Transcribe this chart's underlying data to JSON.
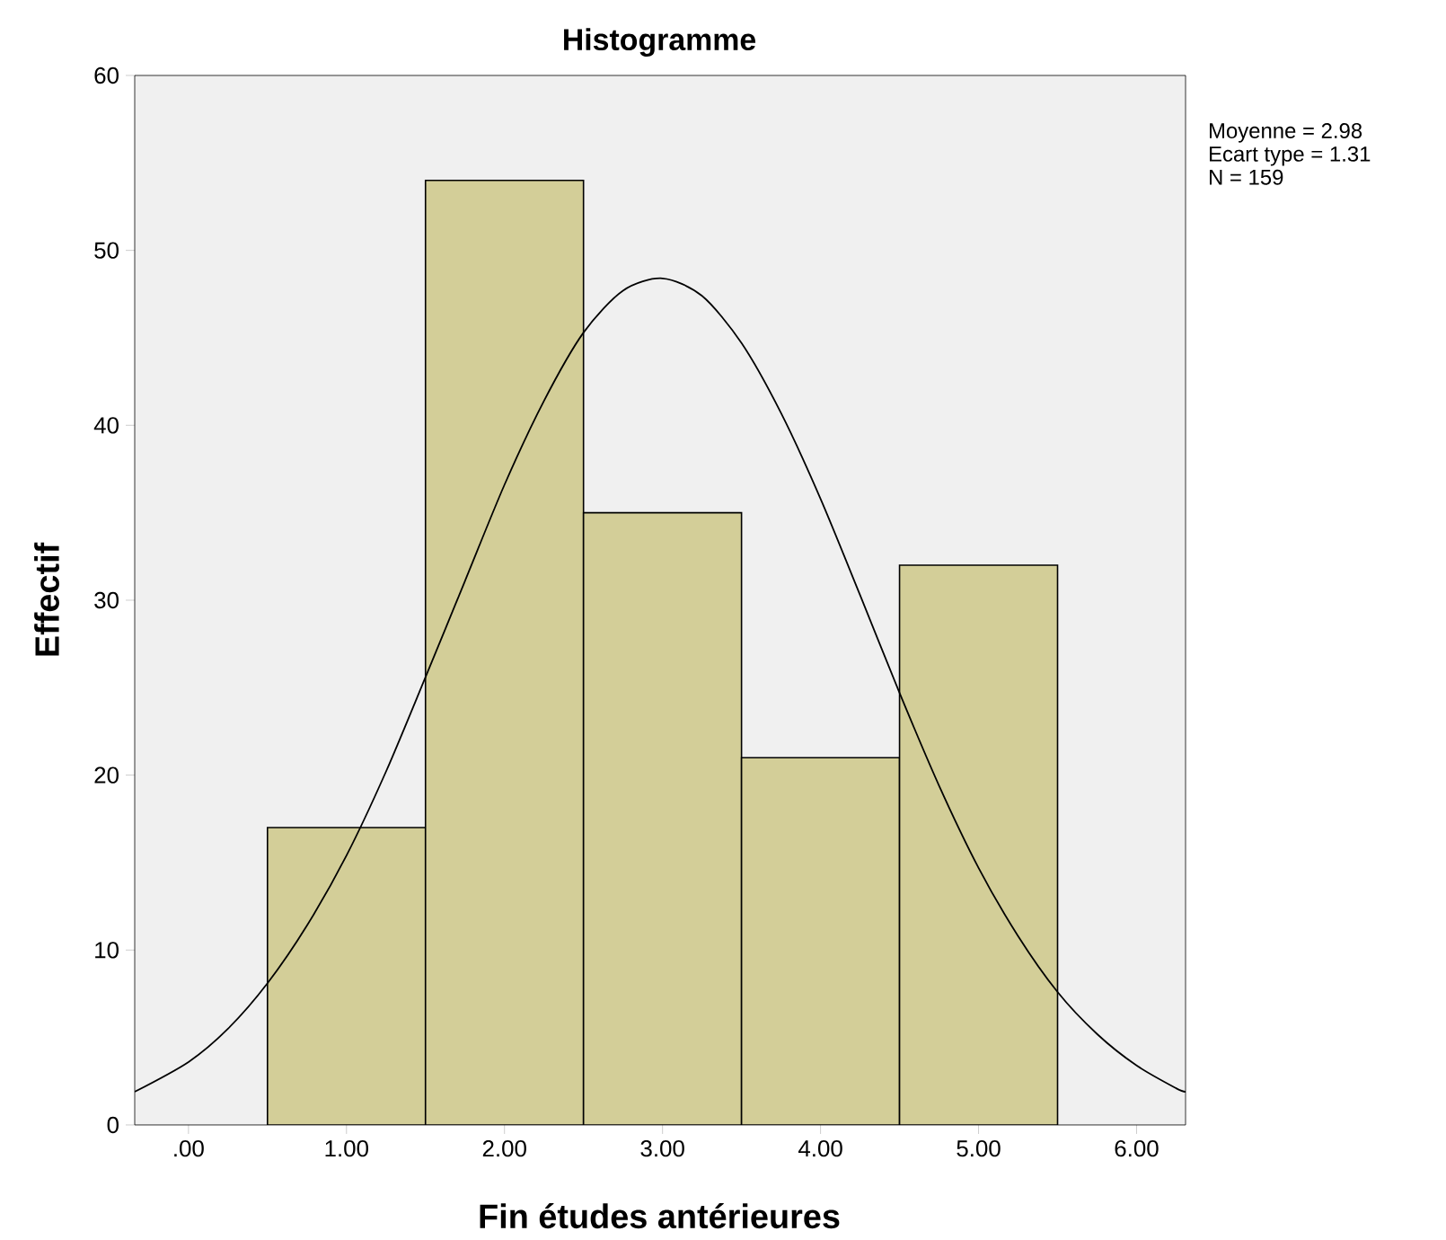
{
  "chart_data": {
    "type": "histogram",
    "title": "Histogramme",
    "xlabel": "Fin études antérieures",
    "ylabel": "Effectif",
    "series": [
      {
        "bins": [
          0.5,
          1.5,
          2.5,
          3.5,
          4.5,
          5.5
        ],
        "values": [
          17,
          54,
          35,
          21,
          32
        ],
        "color": "#d3ce98"
      },
      {
        "type": "line",
        "x": [
          -0.34,
          0,
          0.25,
          0.5,
          0.75,
          1.0,
          1.25,
          1.5,
          1.75,
          2.0,
          2.25,
          2.5,
          2.75,
          3.0,
          3.25,
          3.5,
          3.75,
          4.0,
          4.25,
          4.5,
          4.75,
          5.0,
          5.25,
          5.5,
          5.75,
          6.0,
          6.25,
          6.31
        ],
        "values": [
          1.9,
          3.6,
          5.5,
          8.1,
          11.4,
          15.4,
          20.2,
          25.6,
          31.1,
          36.6,
          41.4,
          45.3,
          47.7,
          48.4,
          47.4,
          44.7,
          40.7,
          35.8,
          30.3,
          24.7,
          19.4,
          14.7,
          10.8,
          7.6,
          5.2,
          3.4,
          2.1,
          1.9
        ],
        "color": "#000000"
      }
    ],
    "xlim": [
      -0.34,
      6.31
    ],
    "ylim": [
      0,
      60
    ],
    "xticks": [
      {
        "value": 0,
        "label": ".00"
      },
      {
        "value": 1,
        "label": "1.00"
      },
      {
        "value": 2,
        "label": "2.00"
      },
      {
        "value": 3,
        "label": "3.00"
      },
      {
        "value": 4,
        "label": "4.00"
      },
      {
        "value": 5,
        "label": "5.00"
      },
      {
        "value": 6,
        "label": "6.00"
      }
    ],
    "yticks": [
      0,
      10,
      20,
      30,
      40,
      50,
      60
    ],
    "annotations": [
      "Moyenne = 2.98",
      "Ecart type = 1.31",
      "N = 159"
    ]
  }
}
